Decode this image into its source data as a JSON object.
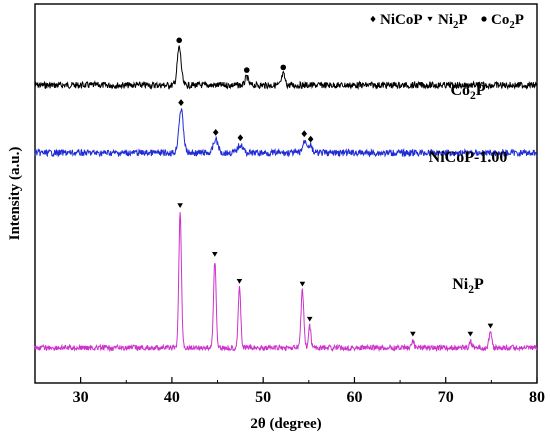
{
  "chart_data": {
    "type": "line",
    "xlabel": "2θ (degree)",
    "ylabel": "Intensity (a.u.)",
    "xlim": [
      25,
      80
    ],
    "x_ticks": [
      30,
      40,
      50,
      60,
      70,
      80
    ],
    "y_ticks_shown": false,
    "grid": false,
    "legend": {
      "placement": "top-right",
      "entries": [
        {
          "marker": "diamond",
          "label": "NiCoP"
        },
        {
          "marker": "triangle-down",
          "label": "Ni",
          "sub": "2",
          "suffix": "P"
        },
        {
          "marker": "circle",
          "label": "Co",
          "sub": "2",
          "suffix": "P"
        }
      ]
    },
    "series": [
      {
        "name": "Co",
        "name_sub": "2",
        "name_suffix": "P",
        "color": "#000000",
        "baseline": 0.3,
        "noise": 0.012,
        "peaks": [
          {
            "x": 40.8,
            "h": 0.14,
            "w": 0.3
          },
          {
            "x": 48.2,
            "h": 0.03,
            "w": 0.25
          },
          {
            "x": 52.2,
            "h": 0.04,
            "w": 0.25
          }
        ],
        "markers": [
          {
            "x": 40.8,
            "symbol": "circle"
          },
          {
            "x": 48.2,
            "symbol": "circle"
          },
          {
            "x": 52.2,
            "symbol": "circle"
          }
        ]
      },
      {
        "name": "NiCoP-1.00",
        "color": "#1f2bd4",
        "baseline": 0.55,
        "noise": 0.012,
        "peaks": [
          {
            "x": 41.0,
            "h": 0.16,
            "w": 0.35
          },
          {
            "x": 44.8,
            "h": 0.05,
            "w": 0.35
          },
          {
            "x": 47.5,
            "h": 0.03,
            "w": 0.4
          },
          {
            "x": 54.6,
            "h": 0.045,
            "w": 0.35
          },
          {
            "x": 55.2,
            "h": 0.025,
            "w": 0.25
          }
        ],
        "markers": [
          {
            "x": 41.0,
            "symbol": "diamond"
          },
          {
            "x": 44.8,
            "symbol": "diamond"
          },
          {
            "x": 47.5,
            "symbol": "diamond"
          },
          {
            "x": 54.5,
            "symbol": "diamond"
          },
          {
            "x": 55.2,
            "symbol": "diamond"
          }
        ]
      },
      {
        "name": "Ni",
        "name_sub": "2",
        "name_suffix": "P",
        "color": "#cc33cc",
        "baseline": 1.27,
        "noise": 0.01,
        "peaks": [
          {
            "x": 40.9,
            "h": 0.5,
            "w": 0.2
          },
          {
            "x": 44.7,
            "h": 0.32,
            "w": 0.2
          },
          {
            "x": 47.4,
            "h": 0.22,
            "w": 0.2
          },
          {
            "x": 54.3,
            "h": 0.21,
            "w": 0.22
          },
          {
            "x": 55.1,
            "h": 0.08,
            "w": 0.18
          },
          {
            "x": 66.4,
            "h": 0.025,
            "w": 0.2
          },
          {
            "x": 72.7,
            "h": 0.025,
            "w": 0.2
          },
          {
            "x": 74.9,
            "h": 0.055,
            "w": 0.22
          }
        ],
        "markers": [
          {
            "x": 40.9,
            "symbol": "triangle-down"
          },
          {
            "x": 44.7,
            "symbol": "triangle-down"
          },
          {
            "x": 47.4,
            "symbol": "triangle-down"
          },
          {
            "x": 54.3,
            "symbol": "triangle-down"
          },
          {
            "x": 55.1,
            "symbol": "triangle-down"
          },
          {
            "x": 66.4,
            "symbol": "triangle-down"
          },
          {
            "x": 72.7,
            "symbol": "triangle-down"
          },
          {
            "x": 74.9,
            "symbol": "triangle-down"
          }
        ]
      }
    ]
  }
}
